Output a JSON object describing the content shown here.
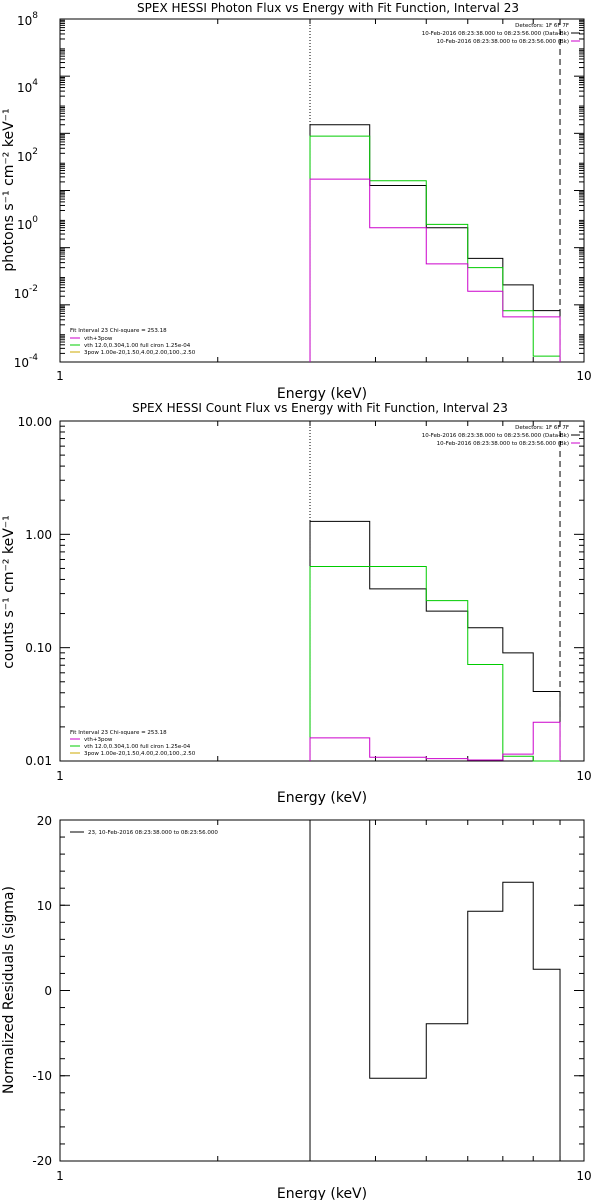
{
  "chart_data": [
    {
      "type": "line",
      "title": "SPEX HESSI Photon Flux vs Energy with Fit Function, Interval 23",
      "xlabel": "Energy (keV)",
      "ylabel": "photons s⁻¹ cm⁻² keV⁻¹",
      "xscale": "log",
      "yscale": "log",
      "xlim": [
        1,
        10
      ],
      "ylim": [
        0.0001,
        100000000
      ],
      "x_tick_labels": [
        "1",
        "10"
      ],
      "y_tick_labels": [
        {
          "base": "10",
          "exp": "-4"
        },
        {
          "base": "10",
          "exp": "-2"
        },
        {
          "base": "10",
          "exp": "0"
        },
        {
          "base": "10",
          "exp": "2"
        },
        {
          "base": "10",
          "exp": "4"
        },
        {
          "base": "10",
          "exp": "6"
        },
        {
          "base": "10",
          "exp": "8"
        }
      ],
      "y_tick_values": [
        0.0001,
        0.01,
        1,
        100,
        10000,
        1000000,
        100000000
      ],
      "vertical_lines": [
        {
          "x": 3.0,
          "style": "dotted"
        },
        {
          "x": 9.0,
          "style": "dashed"
        }
      ],
      "legend_top_right": [
        {
          "text": "Detectors: 1F 6F 7F",
          "color": ""
        },
        {
          "text": "10-Feb-2016 08:23:38.000 to 08:23:56.000 (Data-Bk)",
          "color": "#000000"
        },
        {
          "text": "10-Feb-2016 08:23:38.000 to 08:23:56.000 (Bk)",
          "color": "#cc00cc"
        }
      ],
      "legend_bottom_left": [
        {
          "text": "Fit Interval 23   Chi-square = 253.18",
          "color": ""
        },
        {
          "text": "vth+3pow",
          "color": "#cc00cc"
        },
        {
          "text": "vth 12.0,0.304,1.00  full ciron 1.25e-04",
          "color": "#00cc00"
        },
        {
          "text": "3pow 1.00e-20,1.50,4.00,2.00,100.,2.50",
          "color": "#ccaa00"
        }
      ],
      "edges": [
        3.0,
        3.9,
        5.0,
        6.0,
        7.0,
        8.0,
        9.0
      ],
      "series": [
        {
          "color": "#000000",
          "values": [
            20000,
            150,
            5.0,
            0.42,
            0.05,
            0.0063
          ]
        },
        {
          "color": "#00cc00",
          "values": [
            8000,
            220,
            6.5,
            0.2,
            0.0062,
            0.00016
          ]
        },
        {
          "color": "#cc00cc",
          "values": [
            250,
            5.0,
            0.27,
            0.03,
            0.0038,
            0.0038
          ]
        }
      ]
    },
    {
      "type": "line",
      "title": "SPEX HESSI Count Flux vs Energy with Fit Function, Interval 23",
      "xlabel": "Energy (keV)",
      "ylabel": "counts s⁻¹ cm⁻² keV⁻¹",
      "xscale": "log",
      "yscale": "log",
      "xlim": [
        1,
        10
      ],
      "ylim": [
        0.01,
        10
      ],
      "x_tick_labels": [
        "1",
        "10"
      ],
      "y_tick_labels": [
        "0.01",
        "0.10",
        "1.00",
        "10.00"
      ],
      "y_tick_values": [
        0.01,
        0.1,
        1,
        10
      ],
      "vertical_lines": [
        {
          "x": 3.0,
          "style": "dotted"
        },
        {
          "x": 9.0,
          "style": "dashed"
        }
      ],
      "legend_top_right": [
        {
          "text": "Detectors: 1F 6F 7F",
          "color": ""
        },
        {
          "text": "10-Feb-2016 08:23:38.000 to 08:23:56.000 (Data-Bk)",
          "color": "#000000"
        },
        {
          "text": "10-Feb-2016 08:23:38.000 to 08:23:56.000 (Bk)",
          "color": "#cc00cc"
        }
      ],
      "legend_bottom_left": [
        {
          "text": "Fit Interval 23   Chi-square = 253.18",
          "color": ""
        },
        {
          "text": "vth+3pow",
          "color": "#cc00cc"
        },
        {
          "text": "vth 12.0,0.304,1.00  full ciron 1.25e-04",
          "color": "#00cc00"
        },
        {
          "text": "3pow 1.00e-20,1.50,4.00,2.00,100.,2.50",
          "color": "#ccaa00"
        }
      ],
      "edges": [
        3.0,
        3.9,
        5.0,
        6.0,
        7.0,
        8.0,
        9.0
      ],
      "series": [
        {
          "color": "#000000",
          "values": [
            1.3,
            0.33,
            0.21,
            0.15,
            0.09,
            0.041
          ]
        },
        {
          "color": "#00cc00",
          "values": [
            0.52,
            0.52,
            0.26,
            0.071,
            0.011,
            0.01
          ]
        },
        {
          "color": "#cc00cc",
          "values": [
            0.016,
            0.0108,
            0.0105,
            0.0102,
            0.0115,
            0.022
          ]
        }
      ]
    },
    {
      "type": "line",
      "title": "",
      "xlabel": "Energy (keV)",
      "ylabel": "Normalized Residuals (sigma)",
      "xscale": "log",
      "yscale": "linear",
      "xlim": [
        1,
        10
      ],
      "ylim": [
        -20,
        20
      ],
      "x_tick_labels": [
        "1",
        "10"
      ],
      "y_tick_labels": [
        "-20",
        "-10",
        "0",
        "10",
        "20"
      ],
      "y_tick_values": [
        -20,
        -10,
        0,
        10,
        20
      ],
      "legend_top_left": [
        {
          "text": "23, 10-Feb-2016 08:23:38.000 to 08:23:56.000",
          "color": "#000000"
        }
      ],
      "edges": [
        3.0,
        3.9,
        5.0,
        6.0,
        7.0,
        8.0,
        9.0
      ],
      "series": [
        {
          "color": "#000000",
          "values": [
            20,
            -10.3,
            -3.9,
            9.3,
            12.7,
            2.5
          ]
        }
      ]
    }
  ]
}
